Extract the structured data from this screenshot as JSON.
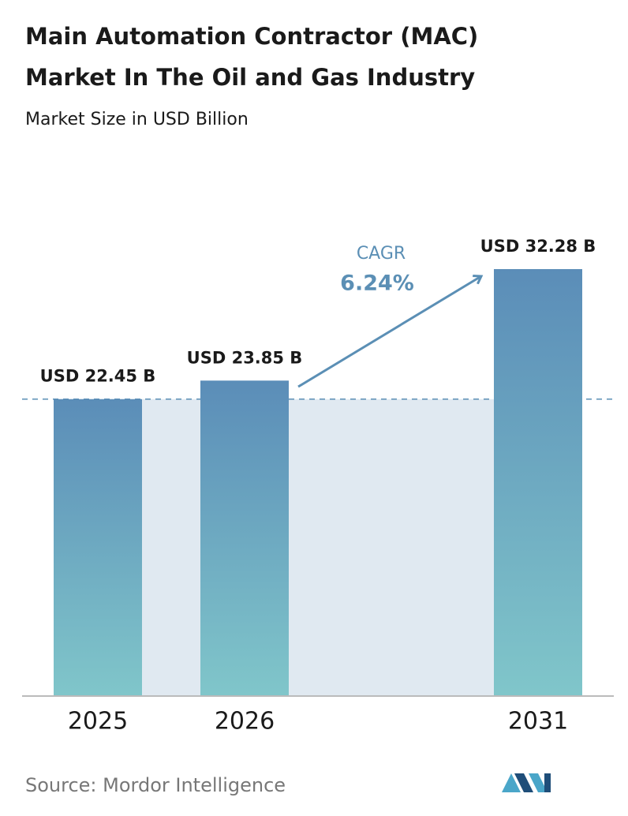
{
  "chart_data": {
    "type": "bar",
    "title": [
      "Main Automation Contractor (MAC)",
      "Market In The Oil and Gas Industry"
    ],
    "subtitle": "Market Size in USD Billion",
    "categories": [
      "2025",
      "2026",
      "2031"
    ],
    "values": [
      22.45,
      23.85,
      32.28
    ],
    "value_labels": [
      "USD 22.45 B",
      "USD 23.85 B",
      "USD 32.28 B"
    ],
    "color": [
      "#5b8db8",
      "#80c6ca"
    ],
    "cagr_label": "CAGR",
    "cagr_value": "6.24%",
    "source": "Source:  Mordor Intelligence"
  }
}
